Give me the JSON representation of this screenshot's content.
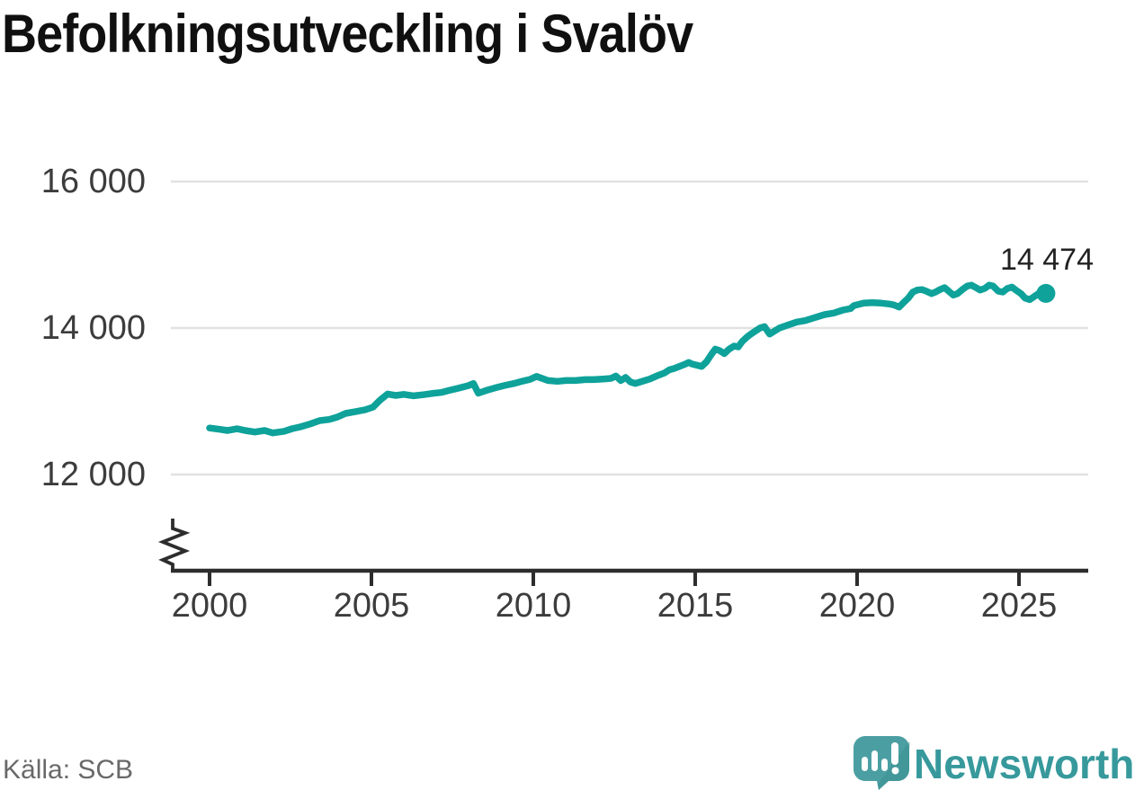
{
  "title": {
    "text": "Befolkningsutveckling i Svalöv"
  },
  "source": {
    "text": "Källa: SCB"
  },
  "branding": {
    "name": "Newsworthy",
    "text_color": "#37999c",
    "bubble_color": "#4b9fa2",
    "bubble_shade_color": "#3c8f92",
    "glyph_color": "#ffffff"
  },
  "chart_data": {
    "type": "line",
    "title": "Befolkningsutveckling i Svalöv",
    "xlabel": "",
    "ylabel": "",
    "line_color": "#0ea29a",
    "grid_color": "#e2e2e2",
    "axis_color": "#2d2d2d",
    "legend": "none",
    "grid": "horizontal-only",
    "y_axis_break": true,
    "xlim": [
      1998.8,
      2027.1
    ],
    "ylim": [
      11700,
      16400
    ],
    "y_tick_values": [
      16000,
      14000,
      12000
    ],
    "y_tick_labels": [
      "16 000",
      "14 000",
      "12 000"
    ],
    "x_tick_values": [
      2000,
      2005,
      2010,
      2015,
      2020,
      2025
    ],
    "x_tick_labels": [
      "2000",
      "2005",
      "2010",
      "2015",
      "2020",
      "2025"
    ],
    "end_label": "14 474",
    "last_value": 14474,
    "points": [
      [
        2000.0,
        12635
      ],
      [
        2000.3,
        12618
      ],
      [
        2000.55,
        12601
      ],
      [
        2000.85,
        12625
      ],
      [
        2001.1,
        12601
      ],
      [
        2001.4,
        12580
      ],
      [
        2001.7,
        12601
      ],
      [
        2001.95,
        12568
      ],
      [
        2002.3,
        12590
      ],
      [
        2002.55,
        12626
      ],
      [
        2002.8,
        12650
      ],
      [
        2003.1,
        12690
      ],
      [
        2003.4,
        12736
      ],
      [
        2003.7,
        12752
      ],
      [
        2003.95,
        12785
      ],
      [
        2004.2,
        12834
      ],
      [
        2004.5,
        12858
      ],
      [
        2004.8,
        12883
      ],
      [
        2005.05,
        12920
      ],
      [
        2005.25,
        13010
      ],
      [
        2005.5,
        13100
      ],
      [
        2005.75,
        13080
      ],
      [
        2006.0,
        13095
      ],
      [
        2006.3,
        13075
      ],
      [
        2006.6,
        13090
      ],
      [
        2006.85,
        13105
      ],
      [
        2007.15,
        13120
      ],
      [
        2007.4,
        13148
      ],
      [
        2007.7,
        13180
      ],
      [
        2008.0,
        13215
      ],
      [
        2008.15,
        13243
      ],
      [
        2008.3,
        13110
      ],
      [
        2008.55,
        13148
      ],
      [
        2008.8,
        13180
      ],
      [
        2009.1,
        13215
      ],
      [
        2009.4,
        13243
      ],
      [
        2009.65,
        13272
      ],
      [
        2009.9,
        13300
      ],
      [
        2010.1,
        13340
      ],
      [
        2010.45,
        13284
      ],
      [
        2010.75,
        13272
      ],
      [
        2011.0,
        13284
      ],
      [
        2011.3,
        13284
      ],
      [
        2011.6,
        13296
      ],
      [
        2011.85,
        13296
      ],
      [
        2012.15,
        13304
      ],
      [
        2012.4,
        13313
      ],
      [
        2012.55,
        13345
      ],
      [
        2012.7,
        13284
      ],
      [
        2012.85,
        13325
      ],
      [
        2013.0,
        13264
      ],
      [
        2013.15,
        13243
      ],
      [
        2013.3,
        13264
      ],
      [
        2013.6,
        13304
      ],
      [
        2013.85,
        13353
      ],
      [
        2014.05,
        13386
      ],
      [
        2014.2,
        13430
      ],
      [
        2014.35,
        13448
      ],
      [
        2014.65,
        13500
      ],
      [
        2014.8,
        13530
      ],
      [
        2014.9,
        13509
      ],
      [
        2015.2,
        13476
      ],
      [
        2015.35,
        13540
      ],
      [
        2015.5,
        13640
      ],
      [
        2015.62,
        13713
      ],
      [
        2015.75,
        13693
      ],
      [
        2015.9,
        13652
      ],
      [
        2016.05,
        13713
      ],
      [
        2016.2,
        13755
      ],
      [
        2016.33,
        13742
      ],
      [
        2016.45,
        13816
      ],
      [
        2016.6,
        13877
      ],
      [
        2016.72,
        13918
      ],
      [
        2016.86,
        13959
      ],
      [
        2017.0,
        14000
      ],
      [
        2017.14,
        14020
      ],
      [
        2017.3,
        13918
      ],
      [
        2017.6,
        14000
      ],
      [
        2017.86,
        14041
      ],
      [
        2018.14,
        14082
      ],
      [
        2018.4,
        14102
      ],
      [
        2018.7,
        14143
      ],
      [
        2019.0,
        14184
      ],
      [
        2019.28,
        14205
      ],
      [
        2019.56,
        14245
      ],
      [
        2019.8,
        14266
      ],
      [
        2019.9,
        14307
      ],
      [
        2020.2,
        14340
      ],
      [
        2020.47,
        14347
      ],
      [
        2020.75,
        14340
      ],
      [
        2021.0,
        14327
      ],
      [
        2021.14,
        14315
      ],
      [
        2021.3,
        14286
      ],
      [
        2021.44,
        14350
      ],
      [
        2021.58,
        14409
      ],
      [
        2021.72,
        14491
      ],
      [
        2021.86,
        14519
      ],
      [
        2022.0,
        14525
      ],
      [
        2022.14,
        14503
      ],
      [
        2022.3,
        14470
      ],
      [
        2022.42,
        14491
      ],
      [
        2022.56,
        14525
      ],
      [
        2022.7,
        14552
      ],
      [
        2022.83,
        14503
      ],
      [
        2022.97,
        14450
      ],
      [
        2023.1,
        14470
      ],
      [
        2023.25,
        14525
      ],
      [
        2023.4,
        14573
      ],
      [
        2023.53,
        14585
      ],
      [
        2023.67,
        14552
      ],
      [
        2023.8,
        14519
      ],
      [
        2023.94,
        14540
      ],
      [
        2024.08,
        14585
      ],
      [
        2024.2,
        14573
      ],
      [
        2024.36,
        14503
      ],
      [
        2024.5,
        14491
      ],
      [
        2024.64,
        14540
      ],
      [
        2024.78,
        14560
      ],
      [
        2024.9,
        14519
      ],
      [
        2025.06,
        14470
      ],
      [
        2025.19,
        14409
      ],
      [
        2025.33,
        14388
      ],
      [
        2025.47,
        14430
      ],
      [
        2025.6,
        14470
      ],
      [
        2025.83,
        14474
      ]
    ]
  }
}
